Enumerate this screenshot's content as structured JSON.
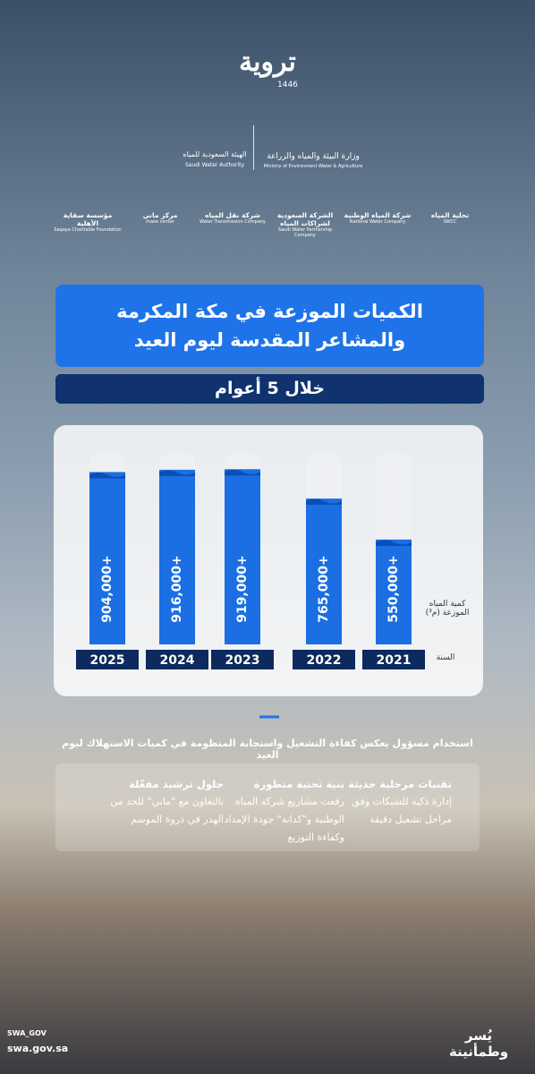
{
  "header": {
    "logo": "تروية",
    "year": "1446"
  },
  "partners": {
    "authority": {
      "ar": "الهيئة السعودية للمياه",
      "en": "Saudi Water Authority"
    },
    "ministry": {
      "ar": "وزارة البيئة والمياه والزراعة",
      "en": "Ministry of Environment Water & Agriculture"
    },
    "others": [
      {
        "ar": "تحلية المياه",
        "en": "SWCC"
      },
      {
        "ar": "شركة المياه الوطنية",
        "en": "National Water Company"
      },
      {
        "ar": "الشركة السعودية لشراكات المياه",
        "en": "Saudi Water Partnership Company"
      },
      {
        "ar": "شركة نقل المياه",
        "en": "Water Transmission Company"
      },
      {
        "ar": "مركز ماني",
        "en": "maee center"
      },
      {
        "ar": "مؤسسة سقاية الأهلية",
        "en": "Saqaya Charitable Foundation"
      }
    ]
  },
  "chart_data": {
    "type": "bar",
    "title": "الكميات الموزعة في مكة المكرمة والمشاعر المقدسة ليوم العيد",
    "subtitle": "خلال 5 أعوام",
    "y_label": "كمية المياه الموزعة (م³)",
    "x_label": "السنة",
    "categories": [
      "2025",
      "2024",
      "2023",
      "2022",
      "2021"
    ],
    "values": [
      904000,
      916000,
      919000,
      765000,
      550000
    ],
    "value_labels": [
      "904,000+",
      "916,000+",
      "919,000+",
      "765,000+",
      "550,000+"
    ],
    "ylim": [
      0,
      1000000
    ],
    "color": "#1b6fe3"
  },
  "statement": "استخدام مسؤول يعكس كفاءة التشغيل واستجابة المنظومة في كميات الاستهلاك ليوم العيد",
  "highlights": [
    {
      "title": "تقنيات مرحلية حديثة",
      "text": "إدارة ذكية للشبكات وفق مراحل تشغيل دقيقة"
    },
    {
      "title": "بنية تحتية متطورة",
      "text": "رفعت مشاريع شركة المياه الوطنية و\"كدانة\" جودة الإمداد وكفاءة التوزيع"
    },
    {
      "title": "حلول ترشيد مفعّلة",
      "text": "بالتعاون مع \"ماني\" للحد من الهدر في ذروة الموسم"
    }
  ],
  "footer": {
    "handle": "SWA_GOV",
    "url": "swa.gov.sa",
    "slogan": "يُسر وطمأنينة"
  }
}
